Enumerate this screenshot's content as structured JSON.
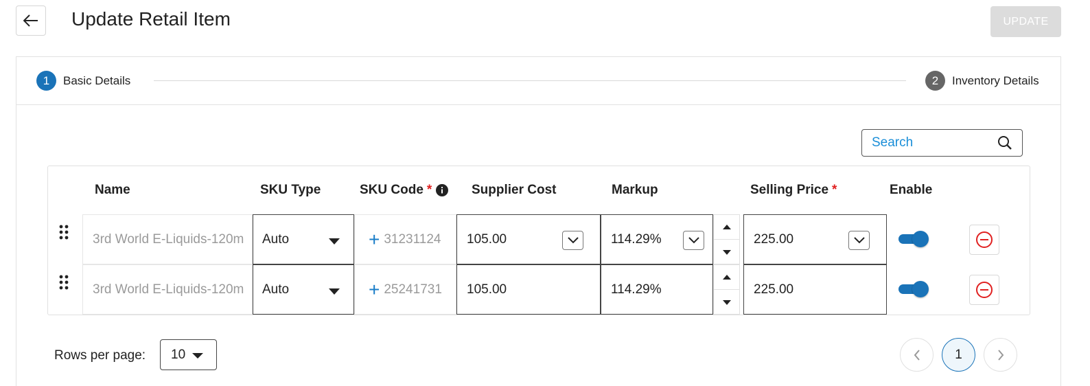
{
  "header": {
    "title": "Update Retail Item",
    "update_label": "UPDATE"
  },
  "stepper": {
    "steps": [
      {
        "number": "1",
        "label": "Basic Details",
        "active": true
      },
      {
        "number": "2",
        "label": "Inventory Details",
        "active": false
      }
    ]
  },
  "search": {
    "placeholder": "Search",
    "value": ""
  },
  "table": {
    "columns": {
      "name": "Name",
      "sku_type": "SKU Type",
      "sku_code": "SKU Code",
      "supplier_cost": "Supplier Cost",
      "markup": "Markup",
      "selling_price": "Selling Price",
      "enable": "Enable"
    },
    "required_mark": "*",
    "rows": [
      {
        "name": "3rd World E-Liquids-120m",
        "sku_type": "Auto",
        "sku_code": "31231124",
        "supplier_cost": "105.00",
        "markup": "114.29%",
        "selling_price": "225.00",
        "enabled": true
      },
      {
        "name": "3rd World E-Liquids-120m",
        "sku_type": "Auto",
        "sku_code": "25241731",
        "supplier_cost": "105.00",
        "markup": "114.29%",
        "selling_price": "225.00",
        "enabled": true
      }
    ]
  },
  "pagination": {
    "rows_per_page_label": "Rows per page:",
    "rows_per_page_value": "10",
    "current_page": "1"
  },
  "colors": {
    "accent": "#1a73b8",
    "required": "#e02020",
    "remove": "#e02020",
    "update_disabled_bg": "#dcdcdc"
  },
  "icons": {
    "back": "arrow-left-icon",
    "search": "search-icon",
    "info": "info-icon",
    "drag": "drag-handle-icon",
    "add": "plus-icon",
    "remove": "minus-circle-icon",
    "prev": "chevron-left-icon",
    "next": "chevron-right-icon"
  }
}
